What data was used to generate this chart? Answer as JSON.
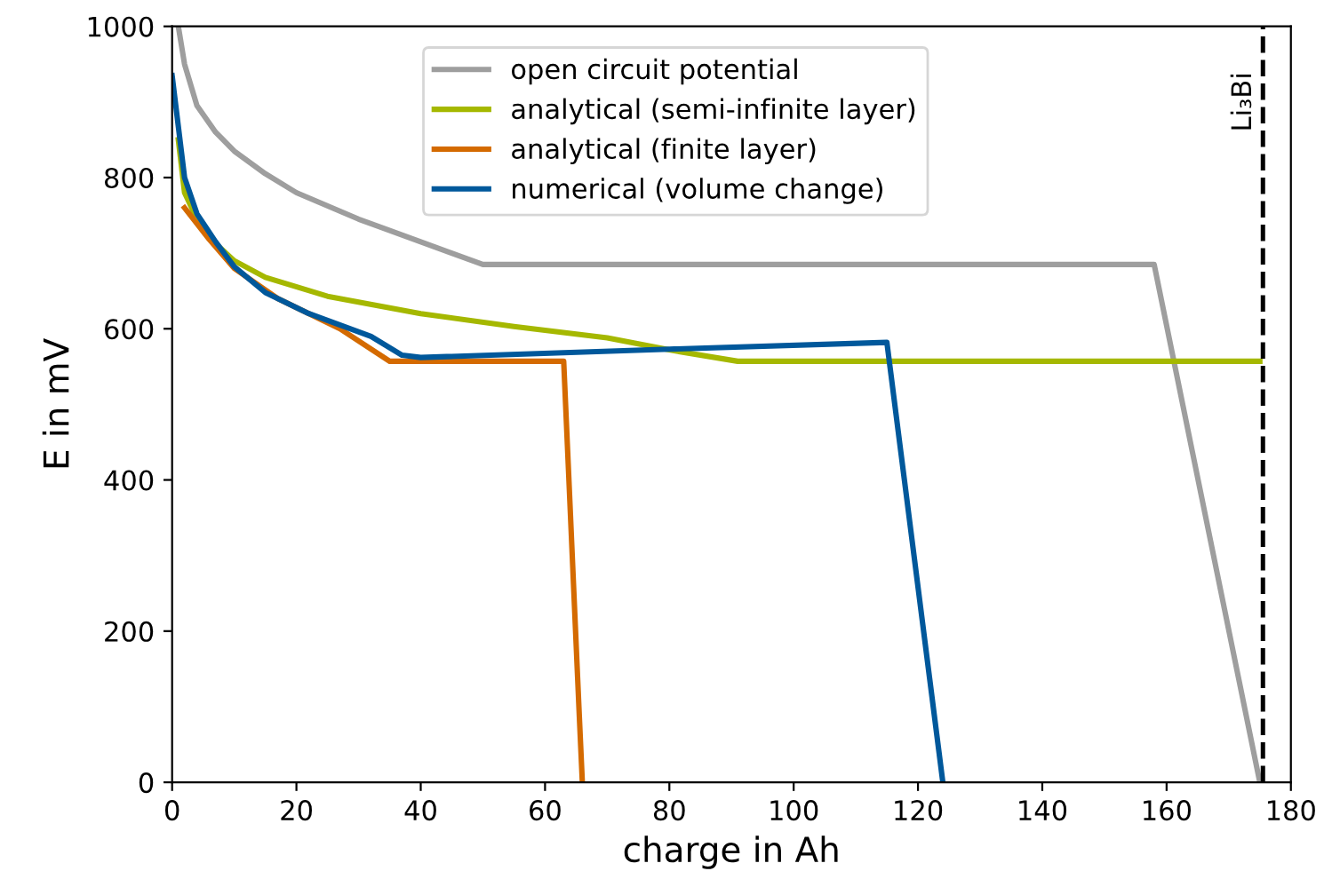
{
  "chart_data": {
    "type": "line",
    "xlabel": "charge in Ah",
    "ylabel": "E in mV",
    "xlim": [
      0,
      180
    ],
    "ylim": [
      0,
      1000
    ],
    "xticks": [
      0,
      20,
      40,
      60,
      80,
      100,
      120,
      140,
      160,
      180
    ],
    "yticks": [
      0,
      200,
      400,
      600,
      800,
      1000
    ],
    "grid": false,
    "legend": "top",
    "line_style": "solid",
    "marker": "none",
    "series": [
      {
        "name": "open circuit potential",
        "color": "#9e9e9e",
        "x": [
          1,
          2,
          4,
          7,
          10,
          15,
          20,
          30,
          40,
          50,
          158,
          175
        ],
        "values": [
          1000,
          950,
          895,
          860,
          835,
          805,
          780,
          745,
          715,
          685,
          685,
          0
        ]
      },
      {
        "name": "analytical (semi-infinite layer)",
        "color": "#a5b800",
        "x": [
          1,
          2,
          4,
          6,
          10,
          15,
          25,
          40,
          55,
          70,
          80,
          91,
          175
        ],
        "values": [
          850,
          780,
          745,
          720,
          690,
          668,
          643,
          620,
          603,
          588,
          572,
          557,
          557
        ]
      },
      {
        "name": "analytical (finite layer)",
        "color": "#d46a00",
        "x": [
          2,
          6,
          10,
          17,
          27,
          35,
          63,
          65.5,
          66
        ],
        "values": [
          760,
          718,
          680,
          640,
          600,
          557,
          557,
          90,
          0
        ]
      },
      {
        "name": "numerical (volume change)",
        "color": "#00589b",
        "x": [
          0,
          2,
          4,
          7,
          10,
          15,
          22,
          32,
          37,
          40,
          80,
          115,
          124
        ],
        "values": [
          935,
          800,
          752,
          715,
          682,
          648,
          620,
          590,
          565,
          562,
          573,
          582,
          0
        ]
      }
    ],
    "ref_lines": [
      {
        "axis": "x",
        "value": 175.5,
        "label": "Li₃Bi",
        "color": "#000000",
        "line_style": "dashed"
      }
    ]
  }
}
